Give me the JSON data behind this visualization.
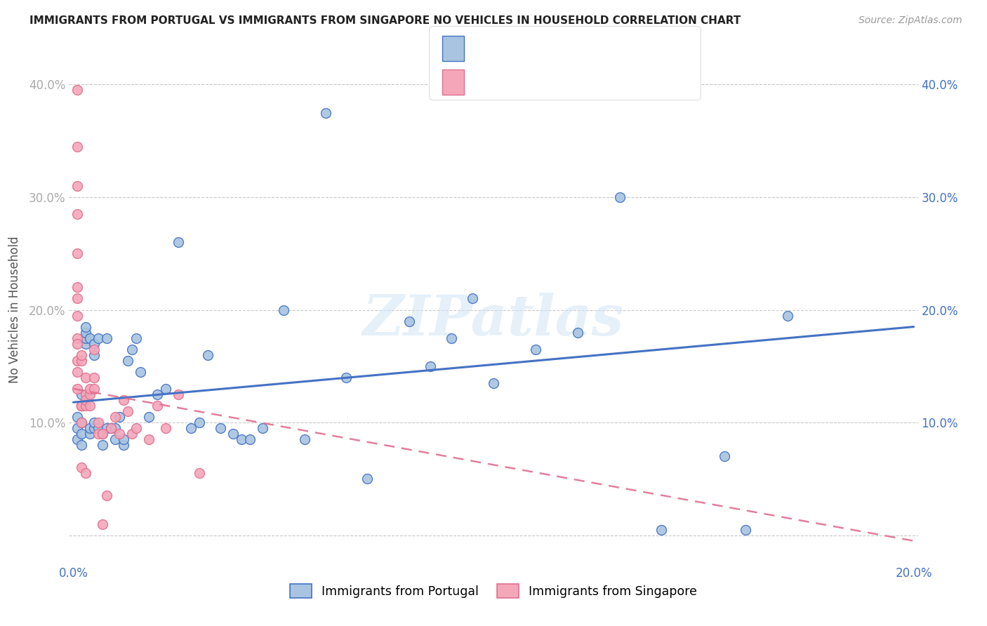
{
  "title": "IMMIGRANTS FROM PORTUGAL VS IMMIGRANTS FROM SINGAPORE NO VEHICLES IN HOUSEHOLD CORRELATION CHART",
  "source": "Source: ZipAtlas.com",
  "ylabel": "No Vehicles in Household",
  "xlim": [
    -0.001,
    0.201
  ],
  "ylim": [
    -0.025,
    0.425
  ],
  "x_tick_positions": [
    0.0,
    0.05,
    0.1,
    0.15,
    0.2
  ],
  "x_tick_labels": [
    "0.0%",
    "",
    "",
    "",
    "20.0%"
  ],
  "y_tick_positions": [
    0.0,
    0.1,
    0.2,
    0.3,
    0.4
  ],
  "y_tick_labels_left": [
    "",
    "10.0%",
    "20.0%",
    "30.0%",
    "40.0%"
  ],
  "y_tick_labels_right": [
    "",
    "10.0%",
    "20.0%",
    "30.0%",
    "40.0%"
  ],
  "color_portugal": "#a8c4e0",
  "color_singapore": "#f4a7b9",
  "color_portugal_line": "#4472c4",
  "color_singapore_line": "#e07090",
  "legend_label1": "Immigrants from Portugal",
  "legend_label2": "Immigrants from Singapore",
  "portugal_x": [
    0.001,
    0.001,
    0.001,
    0.002,
    0.002,
    0.002,
    0.002,
    0.002,
    0.003,
    0.003,
    0.003,
    0.003,
    0.004,
    0.004,
    0.004,
    0.005,
    0.005,
    0.005,
    0.005,
    0.006,
    0.006,
    0.007,
    0.007,
    0.008,
    0.008,
    0.009,
    0.01,
    0.01,
    0.011,
    0.012,
    0.012,
    0.013,
    0.014,
    0.015,
    0.016,
    0.018,
    0.02,
    0.022,
    0.025,
    0.028,
    0.03,
    0.032,
    0.035,
    0.038,
    0.04,
    0.042,
    0.045,
    0.05,
    0.055,
    0.06,
    0.065,
    0.07,
    0.08,
    0.085,
    0.09,
    0.095,
    0.1,
    0.11,
    0.12,
    0.13,
    0.14,
    0.155,
    0.16,
    0.17
  ],
  "portugal_y": [
    0.095,
    0.105,
    0.085,
    0.09,
    0.1,
    0.115,
    0.125,
    0.08,
    0.17,
    0.175,
    0.18,
    0.185,
    0.09,
    0.095,
    0.175,
    0.095,
    0.1,
    0.16,
    0.17,
    0.095,
    0.175,
    0.08,
    0.09,
    0.095,
    0.175,
    0.095,
    0.085,
    0.095,
    0.105,
    0.08,
    0.085,
    0.155,
    0.165,
    0.175,
    0.145,
    0.105,
    0.125,
    0.13,
    0.26,
    0.095,
    0.1,
    0.16,
    0.095,
    0.09,
    0.085,
    0.085,
    0.095,
    0.2,
    0.085,
    0.375,
    0.14,
    0.05,
    0.19,
    0.15,
    0.175,
    0.21,
    0.135,
    0.165,
    0.18,
    0.3,
    0.005,
    0.07,
    0.005,
    0.195
  ],
  "singapore_x": [
    0.001,
    0.001,
    0.001,
    0.001,
    0.001,
    0.001,
    0.001,
    0.001,
    0.001,
    0.001,
    0.001,
    0.001,
    0.001,
    0.002,
    0.002,
    0.002,
    0.002,
    0.002,
    0.002,
    0.002,
    0.002,
    0.003,
    0.003,
    0.003,
    0.003,
    0.003,
    0.004,
    0.004,
    0.004,
    0.005,
    0.005,
    0.005,
    0.006,
    0.006,
    0.007,
    0.007,
    0.008,
    0.009,
    0.01,
    0.011,
    0.012,
    0.013,
    0.014,
    0.015,
    0.018,
    0.02,
    0.022,
    0.025,
    0.03
  ],
  "singapore_y": [
    0.395,
    0.345,
    0.31,
    0.285,
    0.25,
    0.22,
    0.21,
    0.195,
    0.175,
    0.17,
    0.155,
    0.145,
    0.13,
    0.115,
    0.115,
    0.115,
    0.115,
    0.155,
    0.16,
    0.1,
    0.06,
    0.115,
    0.125,
    0.14,
    0.12,
    0.055,
    0.115,
    0.125,
    0.13,
    0.13,
    0.14,
    0.165,
    0.09,
    0.1,
    0.09,
    0.01,
    0.035,
    0.095,
    0.105,
    0.09,
    0.12,
    0.11,
    0.09,
    0.095,
    0.085,
    0.115,
    0.095,
    0.125,
    0.055
  ],
  "portugal_line_x": [
    0.0,
    0.2
  ],
  "portugal_line_y": [
    0.118,
    0.185
  ],
  "singapore_line_x": [
    0.0,
    0.2
  ],
  "singapore_line_y": [
    0.13,
    -0.005
  ],
  "watermark": "ZIPatlas",
  "background_color": "#ffffff",
  "grid_color": "#c8c8c8",
  "title_fontsize": 11,
  "source_fontsize": 10,
  "axis_fontsize": 12,
  "ylabel_fontsize": 12
}
